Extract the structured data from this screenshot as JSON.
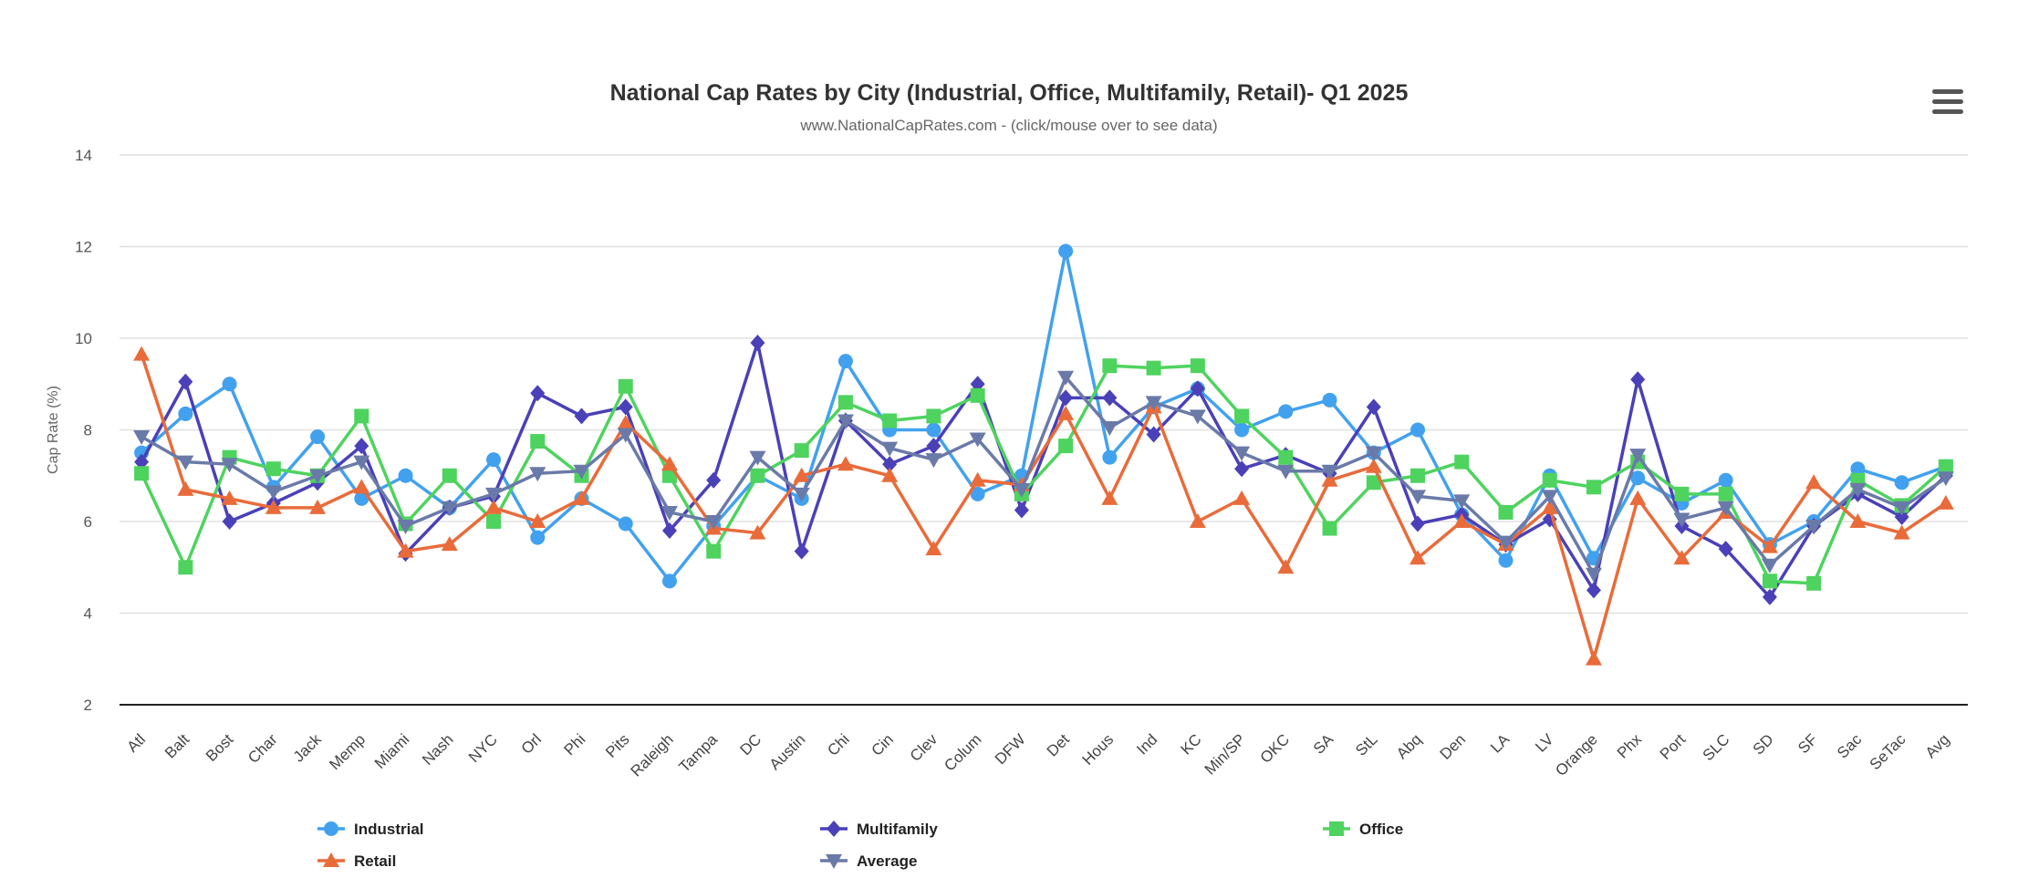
{
  "chart_data": {
    "type": "line",
    "title": "National Cap Rates by City (Industrial, Office, Multifamily, Retail)- Q1 2025",
    "subtitle": "www.NationalCapRates.com - (click/mouse over to see data)",
    "ylabel": "Cap Rate (%)",
    "xlabel": "",
    "ylim": [
      2,
      14
    ],
    "yticks": [
      2,
      4,
      6,
      8,
      10,
      12,
      14
    ],
    "grid": true,
    "legend_position": "bottom",
    "categories": [
      "Atl",
      "Balt",
      "Bost",
      "Char",
      "Jack",
      "Memp",
      "Miami",
      "Nash",
      "NYC",
      "Orl",
      "Phi",
      "Pits",
      "Raleigh",
      "Tampa",
      "DC",
      "Austin",
      "Chi",
      "Cin",
      "Clev",
      "Colum",
      "DFW",
      "Det",
      "Hous",
      "Ind",
      "KC",
      "Min/SP",
      "OKC",
      "SA",
      "StL",
      "Abq",
      "Den",
      "LA",
      "LV",
      "Orange",
      "Phx",
      "Port",
      "SLC",
      "SD",
      "SF",
      "Sac",
      "SeTac",
      "Avg"
    ],
    "series": [
      {
        "name": "Industrial",
        "color": "#42a1ee",
        "marker": "circle",
        "values": [
          7.5,
          8.35,
          9.0,
          6.75,
          7.85,
          6.5,
          7.0,
          6.3,
          7.35,
          5.65,
          6.5,
          5.95,
          4.7,
          5.9,
          7.0,
          6.5,
          9.5,
          8.0,
          8.0,
          6.6,
          7.0,
          11.9,
          7.4,
          8.5,
          8.9,
          8.0,
          8.4,
          8.65,
          7.5,
          8.0,
          6.15,
          5.15,
          7.0,
          5.2,
          6.95,
          6.4,
          6.9,
          5.5,
          6.0,
          7.15,
          6.85,
          7.2
        ]
      },
      {
        "name": "Multifamily",
        "color": "#4a40b8",
        "marker": "diamond",
        "values": [
          7.3,
          9.05,
          6.0,
          6.4,
          6.85,
          7.65,
          5.3,
          6.3,
          6.55,
          8.8,
          8.3,
          8.5,
          5.8,
          6.9,
          9.9,
          5.35,
          8.2,
          7.25,
          7.65,
          9.0,
          6.25,
          8.7,
          8.7,
          7.9,
          8.9,
          7.15,
          7.45,
          7.05,
          8.5,
          5.95,
          6.15,
          5.5,
          6.05,
          4.5,
          9.1,
          5.9,
          5.4,
          4.35,
          5.9,
          6.6,
          6.1,
          7.0
        ]
      },
      {
        "name": "Office",
        "color": "#4ed35f",
        "marker": "square",
        "values": [
          7.05,
          5.0,
          7.4,
          7.15,
          7.0,
          8.3,
          5.95,
          7.0,
          6.0,
          7.75,
          7.0,
          8.95,
          7.0,
          5.35,
          7.0,
          7.55,
          8.6,
          8.2,
          8.3,
          8.75,
          6.6,
          7.65,
          9.4,
          9.35,
          9.4,
          8.3,
          7.4,
          5.85,
          6.85,
          7.0,
          7.3,
          6.2,
          6.9,
          6.75,
          7.3,
          6.6,
          6.6,
          4.7,
          4.65,
          6.9,
          6.35,
          7.2
        ]
      },
      {
        "name": "Retail",
        "color": "#e96b3a",
        "marker": "triangle",
        "values": [
          9.65,
          6.7,
          6.5,
          6.3,
          6.3,
          6.75,
          5.35,
          5.5,
          6.3,
          6.0,
          6.5,
          8.15,
          7.25,
          5.85,
          5.75,
          7.0,
          7.25,
          7.0,
          5.4,
          6.9,
          6.8,
          8.35,
          6.5,
          8.5,
          6.0,
          6.5,
          5.0,
          6.9,
          7.2,
          5.2,
          6.0,
          5.5,
          6.3,
          3.0,
          6.5,
          5.2,
          6.2,
          5.45,
          6.85,
          6.0,
          5.75,
          6.4
        ]
      },
      {
        "name": "Average",
        "color": "#6a7aa8",
        "marker": "triangle-down",
        "values": [
          7.85,
          7.3,
          7.25,
          6.65,
          7.0,
          7.3,
          5.9,
          6.3,
          6.6,
          7.05,
          7.1,
          7.9,
          6.2,
          6.0,
          7.4,
          6.6,
          8.2,
          7.6,
          7.35,
          7.8,
          6.7,
          9.15,
          8.05,
          8.6,
          8.3,
          7.5,
          7.1,
          7.1,
          7.5,
          6.55,
          6.45,
          5.55,
          6.55,
          4.85,
          7.45,
          6.05,
          6.3,
          5.05,
          5.9,
          6.7,
          6.3,
          6.95
        ]
      }
    ]
  },
  "ui": {
    "menu_icon": "hamburger-menu-icon"
  }
}
